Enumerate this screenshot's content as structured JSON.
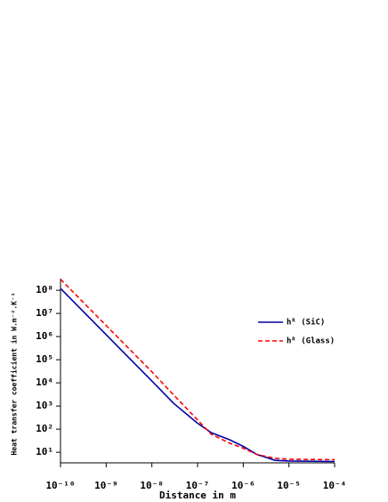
{
  "chart_data": {
    "type": "line",
    "xlabel": "Distance in m",
    "ylabel": "Heat transfer coefficient in W.m⁻².K⁻¹",
    "xscale": "log",
    "yscale": "log",
    "x": [
      1e-10,
      1e-09,
      1e-08,
      3e-08,
      1e-07,
      2e-07,
      5e-07,
      1e-06,
      2e-06,
      5e-06,
      1e-05,
      0.0001
    ],
    "series": [
      {
        "name": "hᴿ (SiC)",
        "color": "#0000aa",
        "dash": "solid",
        "values": [
          120000000,
          1200000,
          12000,
          1300,
          180,
          70,
          35,
          18,
          8,
          4.5,
          4.2,
          4.0
        ]
      },
      {
        "name": "hᴿ (Glass)",
        "color": "#ff0000",
        "dash": "dashed",
        "values": [
          300000000,
          3000000,
          30000,
          3000,
          250,
          60,
          25,
          15,
          8,
          5.5,
          5,
          4.8
        ]
      }
    ],
    "xlim": [
      1e-10,
      0.0001
    ],
    "ylim": [
      3.5,
      320000000
    ],
    "xticks": [
      {
        "value": 1e-10,
        "label": "10⁻¹⁰"
      },
      {
        "value": 1e-09,
        "label": "10⁻⁹"
      },
      {
        "value": 1e-08,
        "label": "10⁻⁸"
      },
      {
        "value": 1e-07,
        "label": "10⁻⁷"
      },
      {
        "value": 1e-06,
        "label": "10⁻⁶"
      },
      {
        "value": 1e-05,
        "label": "10⁻⁵"
      },
      {
        "value": 0.0001,
        "label": "10⁻⁴"
      }
    ],
    "yticks": [
      {
        "value": 10,
        "label": "10¹"
      },
      {
        "value": 100,
        "label": "10²"
      },
      {
        "value": 1000,
        "label": "10³"
      },
      {
        "value": 10000,
        "label": "10⁴"
      },
      {
        "value": 100000,
        "label": "10⁵"
      },
      {
        "value": 1000000,
        "label": "10⁶"
      },
      {
        "value": 10000000,
        "label": "10⁷"
      },
      {
        "value": 100000000,
        "label": "10⁸"
      }
    ],
    "legend": "right"
  }
}
